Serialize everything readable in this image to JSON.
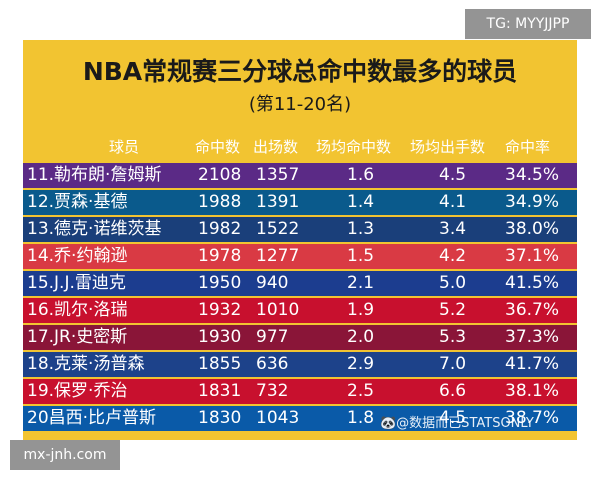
{
  "overlays": {
    "top_right": "TG: MYYJJPP",
    "bottom_left": "mx-jnh.com",
    "watermark": "🐼@数据而已STATSONLY"
  },
  "title": "NBA常规赛三分球总命中数最多的球员",
  "subtitle": "(第11-20名)",
  "headers": {
    "player": "球员",
    "made": "命中数",
    "games": "出场数",
    "per_game": "场均命中数",
    "attempts": "场均出手数",
    "pct": "命中率"
  },
  "rows": [
    {
      "player": "11.勒布朗·詹姆斯",
      "made": "2108",
      "games": "1357",
      "per_game": "1.6",
      "attempts": "4.5",
      "pct": "34.5%",
      "color": "#5b2a86"
    },
    {
      "player": "12.贾森·基德",
      "made": "1988",
      "games": "1391",
      "per_game": "1.4",
      "attempts": "4.1",
      "pct": "34.9%",
      "color": "#0a5a8c"
    },
    {
      "player": "13.德克·诺维茨基",
      "made": "1982",
      "games": "1522",
      "per_game": "1.3",
      "attempts": "3.4",
      "pct": "38.0%",
      "color": "#1a3f7a"
    },
    {
      "player": "14.乔·约翰逊",
      "made": "1978",
      "games": "1277",
      "per_game": "1.5",
      "attempts": "4.2",
      "pct": "37.1%",
      "color": "#d93a44"
    },
    {
      "player": "15.J.J.雷迪克",
      "made": "1950",
      "games": "940",
      "per_game": "2.1",
      "attempts": "5.0",
      "pct": "41.5%",
      "color": "#1c3d8f"
    },
    {
      "player": "16.凯尔·洛瑞",
      "made": "1932",
      "games": "1010",
      "per_game": "1.9",
      "attempts": "5.2",
      "pct": "36.7%",
      "color": "#c8102e"
    },
    {
      "player": "17.JR·史密斯",
      "made": "1930",
      "games": "977",
      "per_game": "2.0",
      "attempts": "5.3",
      "pct": "37.3%",
      "color": "#8a1538"
    },
    {
      "player": "18.克莱·汤普森",
      "made": "1855",
      "games": "636",
      "per_game": "2.9",
      "attempts": "7.0",
      "pct": "41.7%",
      "color": "#1d428a"
    },
    {
      "player": "19.保罗·乔治",
      "made": "1831",
      "games": "732",
      "per_game": "2.5",
      "attempts": "6.6",
      "pct": "38.1%",
      "color": "#c8102e"
    },
    {
      "player": "20昌西·比卢普斯",
      "made": "1830",
      "games": "1043",
      "per_game": "1.8",
      "attempts": "4.5",
      "pct": "38.7%",
      "color": "#0a5aa8"
    }
  ]
}
